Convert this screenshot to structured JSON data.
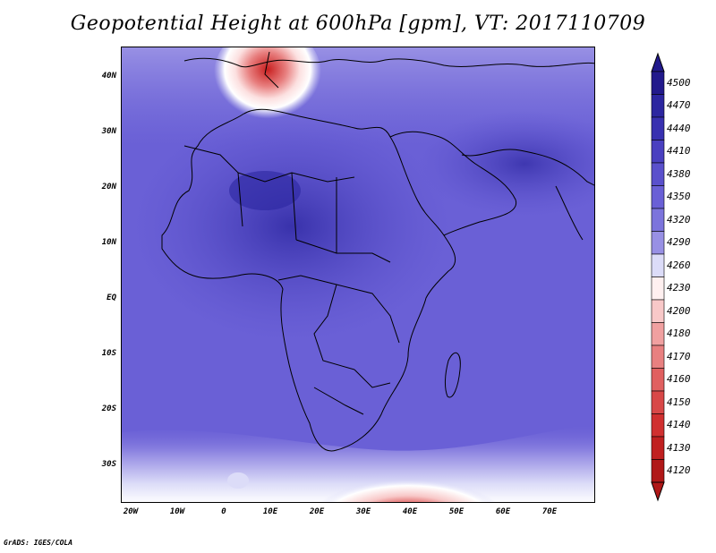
{
  "title": "Geopotential Height at 600hPa [gpm], VT: 2017110709",
  "credit": "GrADS: IGES/COLA",
  "latitude_labels": [
    "40N",
    "30N",
    "20N",
    "10N",
    "EQ",
    "10S",
    "20S",
    "30S"
  ],
  "longitude_labels": [
    "20W",
    "10W",
    "0",
    "10E",
    "20E",
    "30E",
    "40E",
    "50E",
    "60E",
    "70E"
  ],
  "colorbar": {
    "labels": [
      "4500",
      "4470",
      "4440",
      "4410",
      "4380",
      "4350",
      "4320",
      "4290",
      "4260",
      "4230",
      "4200",
      "4180",
      "4170",
      "4160",
      "4150",
      "4140",
      "4130",
      "4120"
    ],
    "colors": [
      "#221a8c",
      "#2c26a0",
      "#3830b0",
      "#4a40c0",
      "#5a50cc",
      "#6a60d6",
      "#7c74dc",
      "#9890e4",
      "#dcdcf8",
      "#fff0f0",
      "#f8c8c8",
      "#f0a0a0",
      "#e88080",
      "#e06060",
      "#d84848",
      "#d03030",
      "#c02020",
      "#b01818"
    ]
  },
  "colors": {
    "background_field": "#6b62d8",
    "coastline": "#000000"
  }
}
